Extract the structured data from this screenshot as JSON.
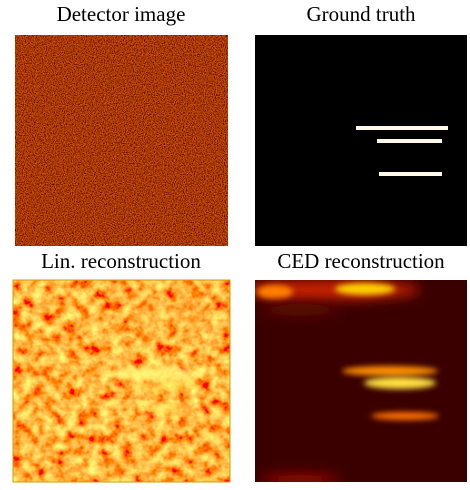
{
  "panels": [
    {
      "title": "Detector image"
    },
    {
      "title": "Ground truth"
    },
    {
      "title": "Lin. reconstruction"
    },
    {
      "title": "CED reconstruction"
    }
  ]
}
